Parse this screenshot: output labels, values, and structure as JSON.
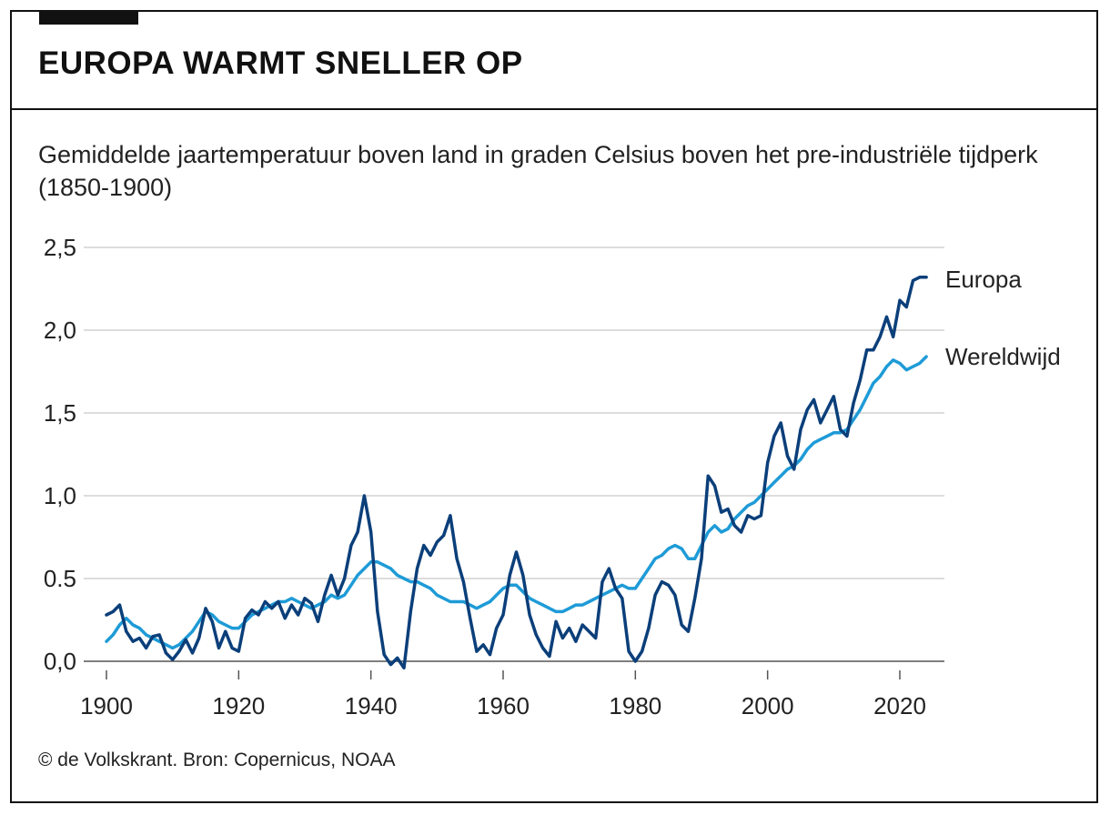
{
  "header": {
    "title": "EUROPA WARMT SNELLER OP",
    "subtitle": "Gemiddelde jaartemperatuur boven land in graden Celsius boven het pre-industriële tijdperk (1850-1900)"
  },
  "footer": {
    "source": "© de Volkskrant. Bron: Copernicus, NOAA"
  },
  "colors": {
    "europa": "#0b3f7a",
    "wereldwijd": "#1e9bd7",
    "grid": "#bbbbbb",
    "axis": "#555555",
    "text": "#222222"
  },
  "chart_data": {
    "type": "line",
    "title": "EUROPA WARMT SNELLER OP",
    "subtitle": "Gemiddelde jaartemperatuur boven land in graden Celsius boven het pre-industriële tijdperk (1850-1900)",
    "xlabel": "",
    "ylabel": "",
    "xlim": [
      1900,
      2024
    ],
    "ylim": [
      0,
      2.5
    ],
    "x_ticks": [
      1900,
      1920,
      1940,
      1960,
      1980,
      2000,
      2020
    ],
    "x_tick_labels": [
      "1900",
      "1920",
      "1940",
      "1960",
      "1980",
      "2000",
      "2020"
    ],
    "y_ticks": [
      0,
      0.5,
      1.0,
      1.5,
      2.0,
      2.5
    ],
    "y_tick_labels": [
      "0,0",
      "0.5",
      "1,0",
      "1,5",
      "2,0",
      "2,5"
    ],
    "grid": "horizontal",
    "legend": "direct labels at line ends",
    "series": [
      {
        "name": "Europa",
        "x": [
          1900,
          1901,
          1902,
          1903,
          1904,
          1905,
          1906,
          1907,
          1908,
          1909,
          1910,
          1911,
          1912,
          1913,
          1914,
          1915,
          1916,
          1917,
          1918,
          1919,
          1920,
          1921,
          1922,
          1923,
          1924,
          1925,
          1926,
          1927,
          1928,
          1929,
          1930,
          1931,
          1932,
          1933,
          1934,
          1935,
          1936,
          1937,
          1938,
          1939,
          1940,
          1941,
          1942,
          1943,
          1944,
          1945,
          1946,
          1947,
          1948,
          1949,
          1950,
          1951,
          1952,
          1953,
          1954,
          1955,
          1956,
          1957,
          1958,
          1959,
          1960,
          1961,
          1962,
          1963,
          1964,
          1965,
          1966,
          1967,
          1968,
          1969,
          1970,
          1971,
          1972,
          1973,
          1974,
          1975,
          1976,
          1977,
          1978,
          1979,
          1980,
          1981,
          1982,
          1983,
          1984,
          1985,
          1986,
          1987,
          1988,
          1989,
          1990,
          1991,
          1992,
          1993,
          1994,
          1995,
          1996,
          1997,
          1998,
          1999,
          2000,
          2001,
          2002,
          2003,
          2004,
          2005,
          2006,
          2007,
          2008,
          2009,
          2010,
          2011,
          2012,
          2013,
          2014,
          2015,
          2016,
          2017,
          2018,
          2019,
          2020,
          2021,
          2022,
          2023,
          2024
        ],
        "values": [
          0.28,
          0.3,
          0.34,
          0.18,
          0.12,
          0.14,
          0.08,
          0.15,
          0.16,
          0.05,
          0.01,
          0.06,
          0.13,
          0.05,
          0.14,
          0.32,
          0.24,
          0.08,
          0.18,
          0.08,
          0.06,
          0.26,
          0.31,
          0.28,
          0.36,
          0.32,
          0.36,
          0.26,
          0.34,
          0.28,
          0.38,
          0.35,
          0.24,
          0.4,
          0.52,
          0.4,
          0.5,
          0.7,
          0.78,
          1.0,
          0.78,
          0.3,
          0.04,
          -0.02,
          0.02,
          -0.04,
          0.3,
          0.56,
          0.7,
          0.64,
          0.72,
          0.76,
          0.88,
          0.62,
          0.48,
          0.26,
          0.06,
          0.1,
          0.04,
          0.2,
          0.28,
          0.52,
          0.66,
          0.52,
          0.28,
          0.16,
          0.08,
          0.03,
          0.24,
          0.14,
          0.2,
          0.12,
          0.22,
          0.18,
          0.14,
          0.48,
          0.56,
          0.44,
          0.38,
          0.06,
          0.0,
          0.06,
          0.2,
          0.4,
          0.48,
          0.46,
          0.4,
          0.22,
          0.18,
          0.38,
          0.62,
          1.12,
          1.06,
          0.9,
          0.92,
          0.82,
          0.78,
          0.88,
          0.86,
          0.88,
          1.2,
          1.36,
          1.44,
          1.24,
          1.16,
          1.4,
          1.52,
          1.58,
          1.44,
          1.52,
          1.6,
          1.4,
          1.36,
          1.56,
          1.7,
          1.88,
          1.88,
          1.96,
          2.08,
          1.96,
          2.18,
          2.14,
          2.3,
          2.32,
          2.32
        ]
      },
      {
        "name": "Wereldwijd",
        "x": [
          1900,
          1901,
          1902,
          1903,
          1904,
          1905,
          1906,
          1907,
          1908,
          1909,
          1910,
          1911,
          1912,
          1913,
          1914,
          1915,
          1916,
          1917,
          1918,
          1919,
          1920,
          1921,
          1922,
          1923,
          1924,
          1925,
          1926,
          1927,
          1928,
          1929,
          1930,
          1931,
          1932,
          1933,
          1934,
          1935,
          1936,
          1937,
          1938,
          1939,
          1940,
          1941,
          1942,
          1943,
          1944,
          1945,
          1946,
          1947,
          1948,
          1949,
          1950,
          1951,
          1952,
          1953,
          1954,
          1955,
          1956,
          1957,
          1958,
          1959,
          1960,
          1961,
          1962,
          1963,
          1964,
          1965,
          1966,
          1967,
          1968,
          1969,
          1970,
          1971,
          1972,
          1973,
          1974,
          1975,
          1976,
          1977,
          1978,
          1979,
          1980,
          1981,
          1982,
          1983,
          1984,
          1985,
          1986,
          1987,
          1988,
          1989,
          1990,
          1991,
          1992,
          1993,
          1994,
          1995,
          1996,
          1997,
          1998,
          1999,
          2000,
          2001,
          2002,
          2003,
          2004,
          2005,
          2006,
          2007,
          2008,
          2009,
          2010,
          2011,
          2012,
          2013,
          2014,
          2015,
          2016,
          2017,
          2018,
          2019,
          2020,
          2021,
          2022,
          2023,
          2024
        ],
        "values": [
          0.12,
          0.16,
          0.22,
          0.26,
          0.22,
          0.2,
          0.16,
          0.14,
          0.12,
          0.1,
          0.08,
          0.1,
          0.14,
          0.18,
          0.24,
          0.3,
          0.28,
          0.24,
          0.22,
          0.2,
          0.2,
          0.24,
          0.28,
          0.3,
          0.32,
          0.34,
          0.36,
          0.36,
          0.38,
          0.36,
          0.34,
          0.32,
          0.34,
          0.36,
          0.4,
          0.38,
          0.4,
          0.46,
          0.52,
          0.56,
          0.6,
          0.6,
          0.58,
          0.56,
          0.52,
          0.5,
          0.48,
          0.48,
          0.46,
          0.44,
          0.4,
          0.38,
          0.36,
          0.36,
          0.36,
          0.34,
          0.32,
          0.34,
          0.36,
          0.4,
          0.44,
          0.46,
          0.46,
          0.42,
          0.38,
          0.36,
          0.34,
          0.32,
          0.3,
          0.3,
          0.32,
          0.34,
          0.34,
          0.36,
          0.38,
          0.4,
          0.42,
          0.44,
          0.46,
          0.44,
          0.44,
          0.5,
          0.56,
          0.62,
          0.64,
          0.68,
          0.7,
          0.68,
          0.62,
          0.62,
          0.7,
          0.78,
          0.82,
          0.78,
          0.8,
          0.86,
          0.9,
          0.94,
          0.96,
          1.0,
          1.04,
          1.08,
          1.12,
          1.16,
          1.18,
          1.22,
          1.28,
          1.32,
          1.34,
          1.36,
          1.38,
          1.38,
          1.4,
          1.46,
          1.52,
          1.6,
          1.68,
          1.72,
          1.78,
          1.82,
          1.8,
          1.76,
          1.78,
          1.8,
          1.84
        ]
      }
    ]
  }
}
